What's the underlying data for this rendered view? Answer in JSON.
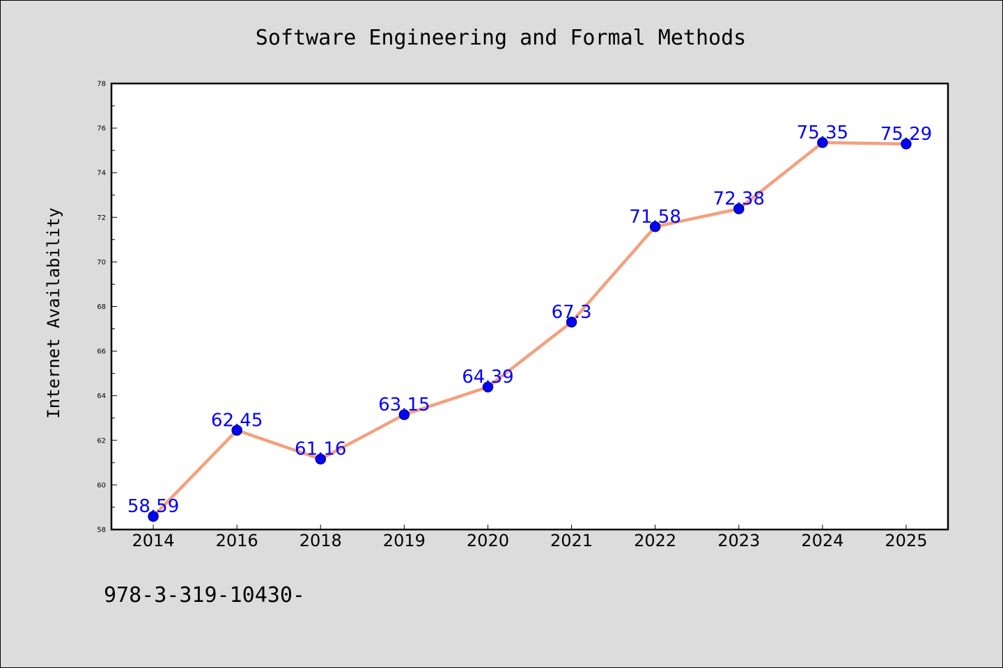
{
  "colors": {
    "background": "#dcdcdc",
    "plot_background": "#ffffff",
    "line": "#f4a07e",
    "marker_fill": "#0000ff",
    "marker_edge": "#00008b",
    "data_label": "#0000ff"
  },
  "chart_data": {
    "type": "line",
    "title": "Software Engineering and Formal Methods",
    "xlabel": "",
    "ylabel": "Internet Availability",
    "categories": [
      "2014",
      "2016",
      "2018",
      "2019",
      "2020",
      "2021",
      "2022",
      "2023",
      "2024",
      "2025"
    ],
    "series": [
      {
        "values": [
          58.59,
          62.45,
          61.16,
          63.15,
          64.39,
          67.3,
          71.58,
          72.38,
          75.35,
          75.29
        ],
        "labels": [
          "58.59",
          "62.45",
          "61.16",
          "63.15",
          "64.39",
          "67.3",
          "71.58",
          "72.38",
          "75.35",
          "75.29"
        ]
      }
    ],
    "ylim": [
      58,
      78
    ],
    "yticks": [
      58,
      60,
      62,
      64,
      66,
      68,
      70,
      72,
      74,
      76,
      78
    ],
    "grid": false,
    "legend": "none"
  },
  "footnote": "978-3-319-10430-"
}
